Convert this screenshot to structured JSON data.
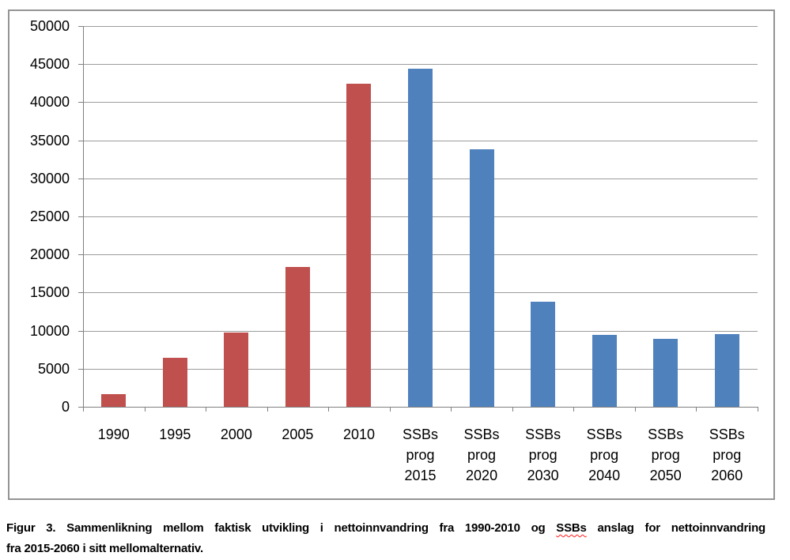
{
  "chart_data": {
    "type": "bar",
    "title": "",
    "xlabel": "",
    "ylabel": "",
    "categories": [
      "1990",
      "1995",
      "2000",
      "2005",
      "2010",
      "SSBs\nprog\n2015",
      "SSBs\nprog\n2020",
      "SSBs\nprog\n2030",
      "SSBs\nprog\n2040",
      "SSBs\nprog\n2050",
      "SSBs\nprog\n2060"
    ],
    "values": [
      1700,
      6400,
      9700,
      18400,
      42400,
      44400,
      33800,
      13800,
      9400,
      8900,
      9500
    ],
    "groups": [
      "faktisk",
      "faktisk",
      "faktisk",
      "faktisk",
      "faktisk",
      "prognose",
      "prognose",
      "prognose",
      "prognose",
      "prognose",
      "prognose"
    ],
    "bar_colors": [
      "#C0504D",
      "#C0504D",
      "#C0504D",
      "#C0504D",
      "#C0504D",
      "#4F81BD",
      "#4F81BD",
      "#4F81BD",
      "#4F81BD",
      "#4F81BD",
      "#4F81BD"
    ],
    "ylim": [
      0,
      50000
    ],
    "ytick_step": 5000,
    "yticks": [
      0,
      5000,
      10000,
      15000,
      20000,
      25000,
      30000,
      35000,
      40000,
      45000,
      50000
    ],
    "grid": true,
    "legend": "none"
  },
  "figure": {
    "caption": {
      "line1_before": "Figur 3. Sammenlikning mellom faktisk utvikling i nettoinnvandring fra 1990-2010 og ",
      "squiggle_word": "SSBs",
      "line1_after": " anslag for nettoinnvandring",
      "line2": "fra 2015-2060 i sitt mellomalternativ."
    }
  },
  "style_colors": {
    "actual_bar": "#C0504D",
    "projection_bar": "#4F81BD",
    "gridline": "#9C9C9C",
    "axis": "#808080",
    "frame_border": "#949494",
    "squiggle": "#FF1A1A",
    "background": "#FFFFFF",
    "text": "#000000"
  }
}
